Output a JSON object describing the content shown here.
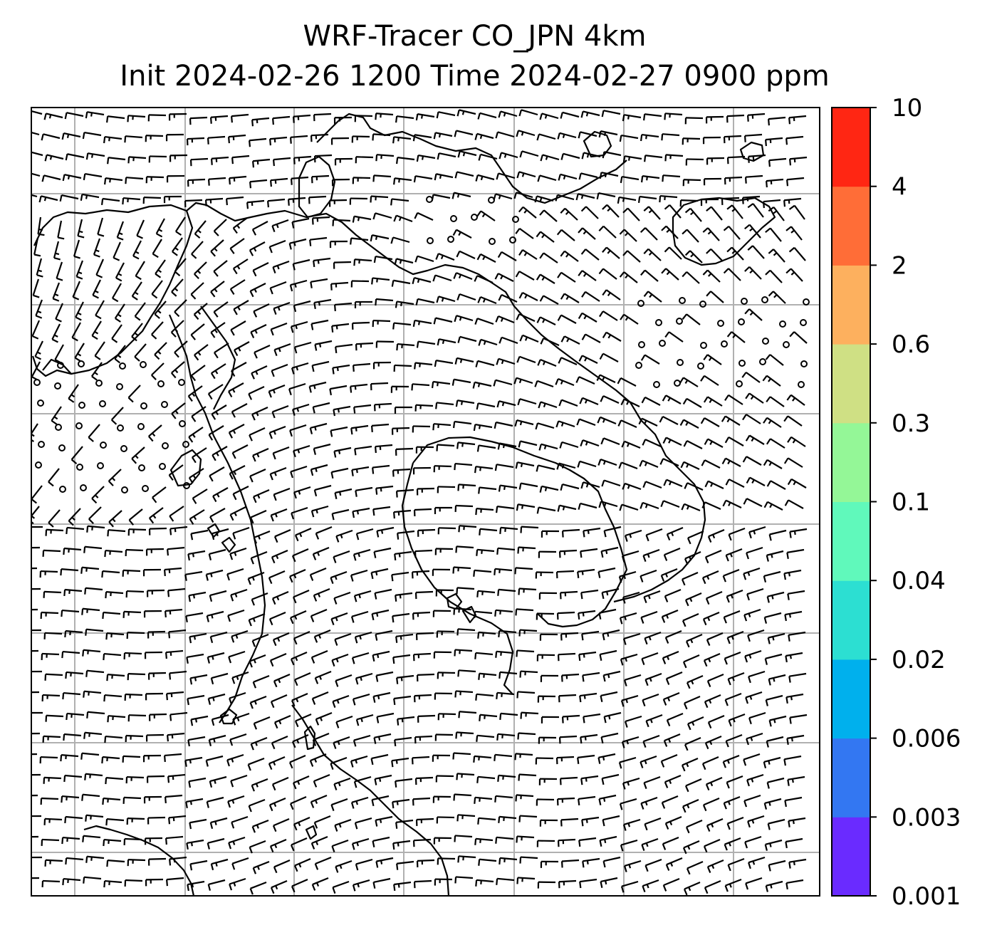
{
  "title": {
    "line1": "WRF-Tracer CO_JPN 4km",
    "line2": "Init 2024-02-26 1200 Time 2024-02-27 0900 ppm"
  },
  "colorbar": {
    "levels": [
      "0.001",
      "0.003",
      "0.006",
      "0.02",
      "0.04",
      "0.1",
      "0.3",
      "0.6",
      "2",
      "4",
      "10"
    ],
    "colors": [
      "#6a2bff",
      "#3377f2",
      "#00b0ed",
      "#2cdfd2",
      "#60f9bb",
      "#94f797",
      "#cfe084",
      "#fdb05e",
      "#ff6d37",
      "#ff2613"
    ]
  },
  "map": {
    "gridline_color": "#b0b0b0",
    "coastline_color": "#000000",
    "barb_color": "#000000",
    "features": [
      "coastlines",
      "wind-barbs",
      "lat-lon-gridlines",
      "calm-wind-circles"
    ]
  }
}
